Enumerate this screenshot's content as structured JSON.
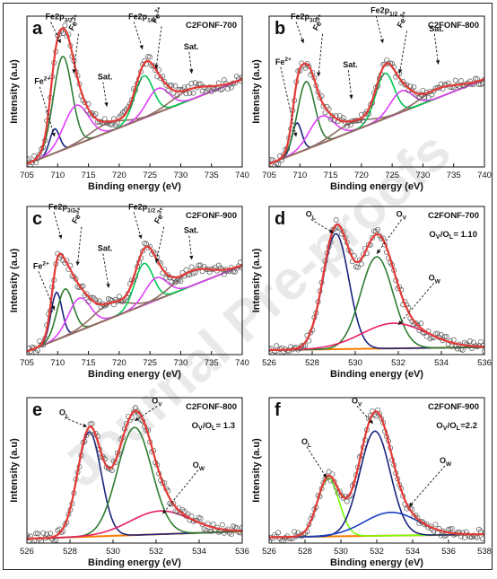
{
  "chart_data": [
    {
      "type": "line",
      "panel_label": "a",
      "sample": "C2FONF-700",
      "xlabel": "Binding energy (eV)",
      "ylabel": "Intensity (a.u)",
      "xlim": [
        705,
        740
      ],
      "xticks": [
        705,
        710,
        715,
        720,
        725,
        730,
        735,
        740
      ],
      "background": [
        0.02,
        0.58
      ],
      "peaks": [
        {
          "name": "Fe2+",
          "center": 709.5,
          "height": 0.16,
          "width": 0.8,
          "color": "#1a237e"
        },
        {
          "name": "Fe2p3/2",
          "center": 710.8,
          "height": 0.62,
          "width": 1.5,
          "color": "#2e7d32"
        },
        {
          "name": "Fe3+",
          "center": 713.0,
          "height": 0.26,
          "width": 2.0,
          "color": "#e040fb"
        },
        {
          "name": "Sat.",
          "center": 718.0,
          "height": 0.06,
          "width": 2.8,
          "color": "#8d6e63"
        },
        {
          "name": "Fe2p1/2",
          "center": 724.0,
          "height": 0.28,
          "width": 1.5,
          "color": "#00c853"
        },
        {
          "name": "Fe3+",
          "center": 726.3,
          "height": 0.16,
          "width": 1.8,
          "color": "#e040fb"
        },
        {
          "name": "Sat.",
          "center": 731.5,
          "height": 0.07,
          "width": 3.0,
          "color": "#8d6e63"
        }
      ],
      "annotations": [
        {
          "text": "Fe",
          "sup": "2+",
          "sub": "",
          "x": 706.2,
          "y": 0.55,
          "tx": 709.5,
          "ty": 0.2
        },
        {
          "text": "Fe2p",
          "sup": "",
          "sub": "3/2",
          "x": 708.0,
          "y": 0.98,
          "tx": 710.5,
          "ty": 0.82
        },
        {
          "text": "Fe",
          "sup": "3+",
          "sub": "",
          "x": 712.5,
          "y": 0.9,
          "tx": 712.6,
          "ty": 0.62,
          "rotate": -60
        },
        {
          "text": "Sat.",
          "sup": "",
          "sub": "",
          "x": 716.5,
          "y": 0.58,
          "tx": 718.0,
          "ty": 0.4
        },
        {
          "text": "Fe2p",
          "sup": "",
          "sub": "1/2",
          "x": 721.5,
          "y": 0.98,
          "tx": 723.8,
          "ty": 0.78
        },
        {
          "text": "Fe",
          "sup": "3+",
          "sub": "",
          "x": 726.0,
          "y": 0.95,
          "tx": 726.0,
          "ty": 0.65,
          "rotate": -60
        },
        {
          "text": "Sat.",
          "sup": "",
          "sub": "",
          "x": 730.5,
          "y": 0.78,
          "tx": 731.8,
          "ty": 0.62
        }
      ]
    },
    {
      "type": "line",
      "panel_label": "b",
      "sample": "C2FONF-800",
      "xlabel": "Binding energy (eV)",
      "ylabel": "Intensity (a.u)",
      "xlim": [
        705,
        740
      ],
      "xticks": [
        705,
        710,
        715,
        720,
        725,
        730,
        735,
        740
      ],
      "background": [
        0.02,
        0.58
      ],
      "peaks": [
        {
          "name": "Fe2+",
          "center": 709.5,
          "height": 0.2,
          "width": 0.8,
          "color": "#1a237e"
        },
        {
          "name": "Fe2p3/2",
          "center": 711.0,
          "height": 0.45,
          "width": 1.4,
          "color": "#2e7d32"
        },
        {
          "name": "Fe3+",
          "center": 713.5,
          "height": 0.18,
          "width": 2.0,
          "color": "#e040fb"
        },
        {
          "name": "Sat.",
          "center": 718.5,
          "height": 0.06,
          "width": 2.8,
          "color": "#8d6e63"
        },
        {
          "name": "Fe2p1/2",
          "center": 723.8,
          "height": 0.3,
          "width": 1.5,
          "color": "#00c853"
        },
        {
          "name": "Fe3+",
          "center": 726.5,
          "height": 0.14,
          "width": 1.8,
          "color": "#e040fb"
        },
        {
          "name": "Sat.",
          "center": 732.5,
          "height": 0.06,
          "width": 3.0,
          "color": "#8d6e63"
        }
      ],
      "annotations": [
        {
          "text": "Fe",
          "sup": "2+",
          "sub": "",
          "x": 706.0,
          "y": 0.68,
          "tx": 709.4,
          "ty": 0.2
        },
        {
          "text": "Fe2p",
          "sup": "",
          "sub": "3/2",
          "x": 708.5,
          "y": 0.98,
          "tx": 710.6,
          "ty": 0.82
        },
        {
          "text": "Fe",
          "sup": "3+",
          "sub": "",
          "x": 712.8,
          "y": 0.9,
          "tx": 713.0,
          "ty": 0.6,
          "rotate": -60
        },
        {
          "text": "Sat.",
          "sup": "",
          "sub": "",
          "x": 717.0,
          "y": 0.66,
          "tx": 718.4,
          "ty": 0.45
        },
        {
          "text": "Fe2p",
          "sup": "",
          "sub": "1/2",
          "x": 721.5,
          "y": 1.02,
          "tx": 723.5,
          "ty": 0.82
        },
        {
          "text": "Fe",
          "sup": "3+",
          "sub": "",
          "x": 726.5,
          "y": 0.92,
          "tx": 726.2,
          "ty": 0.62,
          "rotate": -60
        },
        {
          "text": "Sat.",
          "sup": "",
          "sub": "",
          "x": 731.0,
          "y": 0.9,
          "tx": 732.5,
          "ty": 0.68
        }
      ]
    },
    {
      "type": "line",
      "panel_label": "c",
      "sample": "C2FONF-900",
      "xlabel": "Binding energy (eV)",
      "ylabel": "Intensity (a.u)",
      "xlim": [
        705,
        740
      ],
      "xticks": [
        705,
        710,
        715,
        720,
        725,
        730,
        735,
        740
      ],
      "background": [
        0.02,
        0.6
      ],
      "peaks": [
        {
          "name": "Fe2+",
          "center": 709.8,
          "height": 0.32,
          "width": 0.9,
          "color": "#1a237e"
        },
        {
          "name": "Fe2p3/2",
          "center": 711.2,
          "height": 0.32,
          "width": 1.3,
          "color": "#2e7d32"
        },
        {
          "name": "Fe3+",
          "center": 713.5,
          "height": 0.22,
          "width": 1.8,
          "color": "#e040fb"
        },
        {
          "name": "Sat.",
          "center": 718.5,
          "height": 0.1,
          "width": 2.8,
          "color": "#8d6e63"
        },
        {
          "name": "Fe2p1/2",
          "center": 724.0,
          "height": 0.28,
          "width": 1.5,
          "color": "#00c853"
        },
        {
          "name": "Fe3+",
          "center": 726.0,
          "height": 0.15,
          "width": 1.8,
          "color": "#e040fb"
        },
        {
          "name": "Sat.",
          "center": 731.8,
          "height": 0.1,
          "width": 3.0,
          "color": "#8d6e63"
        }
      ],
      "annotations": [
        {
          "text": "Fe",
          "sup": "2+",
          "sub": "",
          "x": 706.0,
          "y": 0.58,
          "tx": 709.5,
          "ty": 0.3
        },
        {
          "text": "Fe2p",
          "sup": "",
          "sub": "3/2",
          "x": 708.5,
          "y": 0.98,
          "tx": 710.6,
          "ty": 0.78
        },
        {
          "text": "Fe",
          "sup": "3+",
          "sub": "",
          "x": 713.0,
          "y": 0.88,
          "tx": 713.2,
          "ty": 0.6,
          "rotate": -60
        },
        {
          "text": "Sat.",
          "sup": "",
          "sub": "",
          "x": 716.5,
          "y": 0.7,
          "tx": 718.3,
          "ty": 0.45
        },
        {
          "text": "Fe2p",
          "sup": "",
          "sub": "1/2",
          "x": 721.5,
          "y": 0.98,
          "tx": 723.6,
          "ty": 0.78
        },
        {
          "text": "Fe",
          "sup": "3+",
          "sub": "",
          "x": 726.4,
          "y": 0.88,
          "tx": 726.0,
          "ty": 0.62,
          "rotate": -60
        },
        {
          "text": "Sat.",
          "sup": "",
          "sub": "",
          "x": 730.5,
          "y": 0.82,
          "tx": 731.8,
          "ty": 0.64
        }
      ]
    },
    {
      "type": "line",
      "panel_label": "d",
      "sample": "C2FONF-700",
      "ratio": {
        "text": "O",
        "sub1": "V",
        "mid": "/O",
        "sub2": "L",
        "tail": "= 1.10"
      },
      "xlabel": "Binding energy (eV)",
      "ylabel": "Intensity (a.u)",
      "xlim": [
        526,
        536
      ],
      "xticks": [
        526,
        528,
        530,
        532,
        534,
        536
      ],
      "background": [
        0.03,
        0.05
      ],
      "peaks": [
        {
          "name": "OL",
          "center": 529.1,
          "height": 0.78,
          "width": 0.6,
          "color": "#1a237e"
        },
        {
          "name": "OV",
          "center": 531.0,
          "height": 0.62,
          "width": 0.75,
          "color": "#2e7d32"
        },
        {
          "name": "OW",
          "center": 531.8,
          "height": 0.17,
          "width": 1.5,
          "color": "#e91e63"
        }
      ],
      "annotations": [
        {
          "text": "O",
          "sup": "",
          "sub": "L",
          "x": 527.7,
          "y": 0.93,
          "tx": 529.0,
          "ty": 0.82
        },
        {
          "text": "O",
          "sup": "",
          "sub": "V",
          "x": 531.9,
          "y": 0.93,
          "tx": 531.0,
          "ty": 0.68
        },
        {
          "text": "O",
          "sup": "",
          "sub": "W",
          "x": 533.4,
          "y": 0.5,
          "tx": 532.0,
          "ty": 0.2
        }
      ]
    },
    {
      "type": "line",
      "panel_label": "e",
      "sample": "C2FONF-800",
      "ratio": {
        "text": "O",
        "sub1": "V",
        "mid": "/O",
        "sub2": "L",
        "tail": "= 1.3"
      },
      "xlabel": "Binding energy (eV)",
      "ylabel": "Intensity (a.u)",
      "xlim": [
        526,
        536
      ],
      "xticks": [
        526,
        528,
        530,
        532,
        534,
        536
      ],
      "background": [
        0.03,
        0.08
      ],
      "peaks": [
        {
          "name": "OL",
          "center": 528.9,
          "height": 0.72,
          "width": 0.55,
          "color": "#1a237e"
        },
        {
          "name": "OV",
          "center": 531.0,
          "height": 0.74,
          "width": 0.8,
          "color": "#2e7d32"
        },
        {
          "name": "OW",
          "center": 532.2,
          "height": 0.16,
          "width": 1.4,
          "color": "#e91e63"
        }
      ],
      "annotations": [
        {
          "text": "O",
          "sup": "",
          "sub": "L",
          "x": 527.5,
          "y": 0.88,
          "tx": 528.8,
          "ty": 0.8
        },
        {
          "text": "O",
          "sup": "",
          "sub": "V",
          "x": 531.8,
          "y": 0.96,
          "tx": 531.0,
          "ty": 0.84
        },
        {
          "text": "O",
          "sup": "",
          "sub": "W",
          "x": 533.7,
          "y": 0.52,
          "tx": 532.3,
          "ty": 0.2
        }
      ]
    },
    {
      "type": "line",
      "panel_label": "f",
      "sample": "C2FONF-900",
      "ratio": {
        "text": "O",
        "sub1": "V",
        "mid": "/O",
        "sub2": "L",
        "tail": "=2.2"
      },
      "xlabel": "Binding energy (eV)",
      "ylabel": "Intensity (a.u)",
      "xlim": [
        526,
        538
      ],
      "xticks": [
        526,
        528,
        530,
        532,
        534,
        536,
        538
      ],
      "background": [
        0.04,
        0.06
      ],
      "peaks": [
        {
          "name": "OL",
          "center": 529.3,
          "height": 0.4,
          "width": 0.6,
          "color": "#76ff03"
        },
        {
          "name": "OV",
          "center": 531.9,
          "height": 0.72,
          "width": 0.85,
          "color": "#1a237e"
        },
        {
          "name": "OW",
          "center": 532.8,
          "height": 0.16,
          "width": 1.5,
          "color": "#1a3fbf"
        }
      ],
      "annotations": [
        {
          "text": "O",
          "sup": "",
          "sub": "L",
          "x": 527.8,
          "y": 0.68,
          "tx": 529.2,
          "ty": 0.45
        },
        {
          "text": "O",
          "sup": "",
          "sub": "V",
          "x": 530.6,
          "y": 0.96,
          "tx": 531.8,
          "ty": 0.82
        },
        {
          "text": "O",
          "sup": "",
          "sub": "W",
          "x": 535.5,
          "y": 0.55,
          "tx": 533.8,
          "ty": 0.25
        }
      ]
    }
  ],
  "colors": {
    "raw_data": "#555555",
    "fitted_envelope": "#e53935",
    "background_line": "#f57c00"
  },
  "watermark": "Journal Pre-proofs"
}
